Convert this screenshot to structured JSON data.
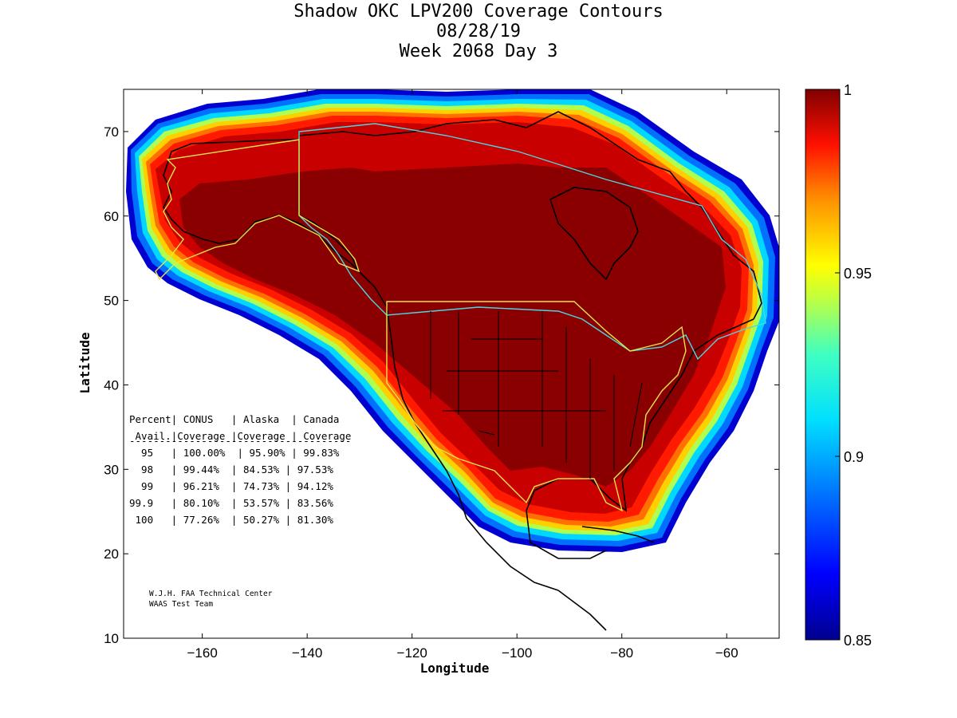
{
  "title": {
    "line1": "Shadow OKC LPV200 Coverage Contours",
    "line2": "08/28/19",
    "line3": "Week 2068 Day 3"
  },
  "axes": {
    "xlabel": "Longitude",
    "ylabel": "Latitude",
    "xlim": [
      -175,
      -50
    ],
    "ylim": [
      10,
      75
    ],
    "xticks": [
      -160,
      -140,
      -120,
      -100,
      -80,
      -60
    ],
    "yticks": [
      10,
      20,
      30,
      40,
      50,
      60,
      70
    ]
  },
  "colorbar": {
    "range": [
      0.85,
      1
    ],
    "ticks": [
      "1",
      "0.95",
      "0.9",
      "0.85"
    ]
  },
  "colors": {
    "deep_red": "#7f0000",
    "red": "#c00000",
    "bright_red": "#ff1a00",
    "orange": "#ff8c00",
    "yellow": "#ffe600",
    "cyan": "#00d2ff",
    "blue": "#0050ff",
    "dark_blue": "#00008f",
    "coastline": "#000000",
    "region_border_yellow": "#e6e64a",
    "region_border_cyan": "#4ad6e0"
  },
  "table": {
    "header1": "Percent| CONUS   | Alaska  | Canada",
    "header2": " Avail.|Coverage |Coverage | Coverage",
    "rule": "-------------------------------------",
    "rows": [
      "  95   | 100.00%  | 95.90% | 99.83%",
      "  98   | 99.44%  | 84.53% | 97.53%",
      "  99   | 96.21%  | 74.73% | 94.12%",
      "99.9   | 80.10%  | 53.57% | 83.56%",
      " 100   | 77.26%  | 50.27% | 81.30%"
    ]
  },
  "credits": {
    "line1": "W.J.H. FAA Technical Center",
    "line2": "WAAS Test Team"
  }
}
